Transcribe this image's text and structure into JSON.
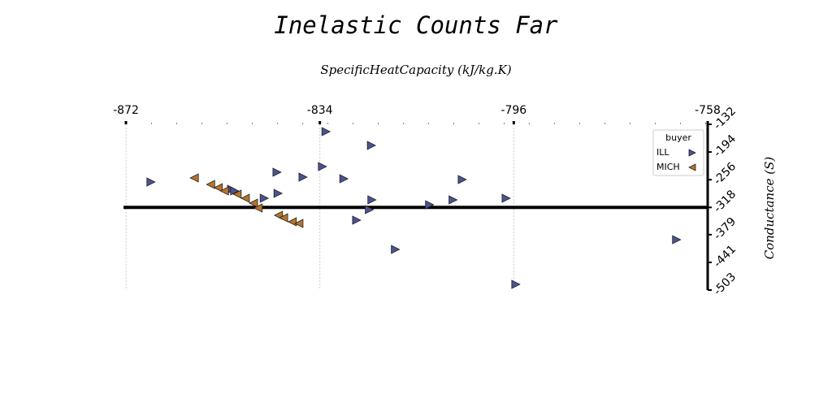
{
  "chart_data": {
    "type": "scatter",
    "title": "Inelastic Counts Far",
    "x_label": "SpecificHeatCapacity (kJ/kg.K)",
    "y_label": "Conductance (S)",
    "legend_title": "buyer",
    "legend_position": "upper right",
    "xlim": [
      -872,
      -758
    ],
    "xticks": [
      -872,
      -834,
      -796,
      -758
    ],
    "ylim": [
      -503,
      -132
    ],
    "yticks": [
      -132,
      -194,
      -256,
      -318,
      -379,
      -441,
      -503
    ],
    "grid": true,
    "hline": -318,
    "series": [
      {
        "name": "ILL",
        "color": "#4b5391",
        "marker": "triangle-right",
        "x": [
          -832.8,
          -823.9,
          -867.1,
          -842.4,
          -837.3,
          -833.5,
          -829.3,
          -851.3,
          -850.7,
          -842.2,
          -844.9,
          -806.1,
          -823.8,
          -807.9,
          -797.5,
          -812.5,
          -824.3,
          -826.8,
          -819.2,
          -764.1,
          -795.6
        ],
        "values": [
          -148.4,
          -179.3,
          -261.1,
          -239.3,
          -250.2,
          -226.6,
          -253.9,
          -277.5,
          -281.1,
          -286.6,
          -297.5,
          -255.7,
          -301.1,
          -301.1,
          -297.5,
          -312.1,
          -323.0,
          -346.6,
          -412.1,
          -390.3,
          -490.3
        ]
      },
      {
        "name": "MICH",
        "color": "#b8732a",
        "marker": "triangle-left",
        "x": [
          -858.6,
          -855.4,
          -853.9,
          -852.7,
          -850.2,
          -848.6,
          -847.0,
          -846.1,
          -842.1,
          -841.1,
          -839.4,
          -838.1
        ],
        "values": [
          -252.0,
          -266.6,
          -273.9,
          -281.1,
          -288.4,
          -297.5,
          -308.4,
          -319.3,
          -335.7,
          -341.1,
          -350.2,
          -353.9
        ]
      }
    ]
  }
}
